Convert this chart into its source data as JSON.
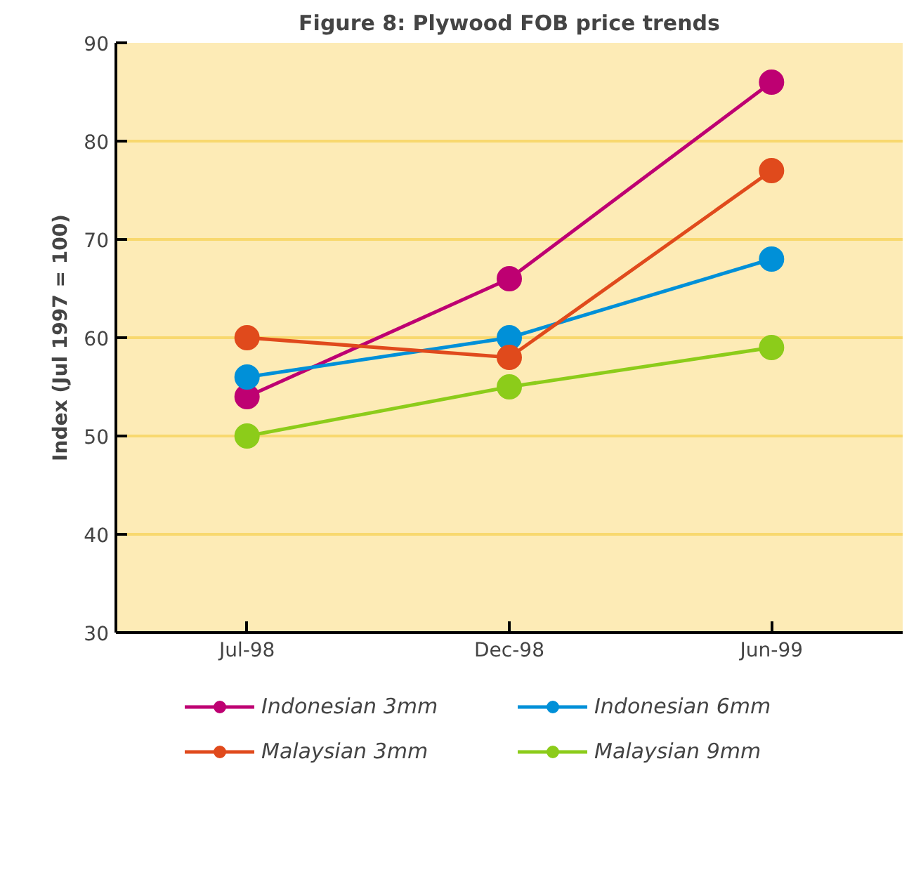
{
  "chart_data": {
    "type": "line",
    "title": "Figure 8: Plywood FOB price trends",
    "ylabel": "Index (Jul 1997 = 100)",
    "categories": [
      "Jul-98",
      "Dec-98",
      "Jun-99"
    ],
    "series": [
      {
        "name": "Indonesian 3mm",
        "color": "#be0072",
        "values": [
          54,
          66,
          86
        ]
      },
      {
        "name": "Indonesian 6mm",
        "color": "#0090d8",
        "values": [
          56,
          60,
          68
        ]
      },
      {
        "name": "Malaysian 3mm",
        "color": "#e04a1c",
        "values": [
          60,
          58,
          77
        ]
      },
      {
        "name": "Malaysian 9mm",
        "color": "#8ccc1a",
        "values": [
          50,
          55,
          59
        ]
      }
    ],
    "ylim": [
      30,
      90
    ],
    "yticks": [
      30,
      40,
      50,
      60,
      70,
      80,
      90
    ],
    "grid": "y",
    "legend": "bottom",
    "marker": "circle",
    "line_style": "solid"
  }
}
